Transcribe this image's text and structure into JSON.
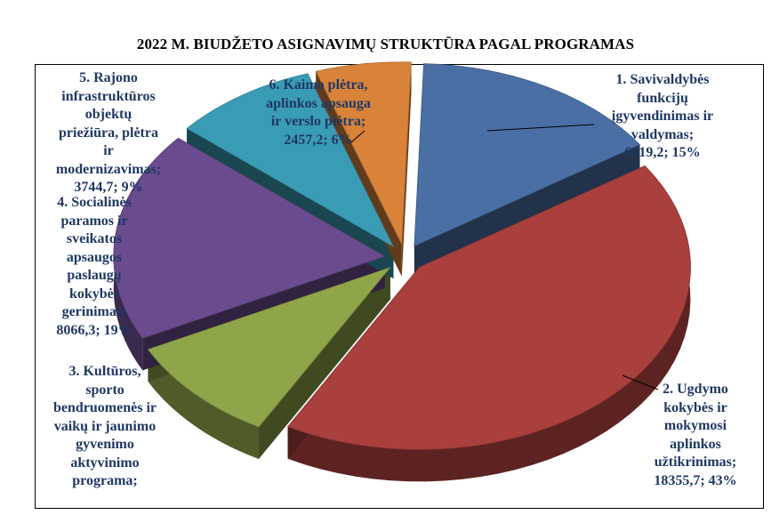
{
  "chart_data": {
    "type": "pie",
    "title": "2022 M. BIUDŽETO ASIGNAVIMŲ STRUKTŪRA PAGAL PROGRAMAS",
    "slices": [
      {
        "label": "1. Savivaldybės funkcijų įgyvendinimas ir valdymas; 6519,2; 15%",
        "value": 6519.2,
        "percent": 15,
        "color": "#4a6fa5"
      },
      {
        "label": "2. Ugdymo kokybės ir mokymosi aplinkos užtikrinimas; 18355,7; 43%",
        "value": 18355.7,
        "percent": 43,
        "color": "#a9403d"
      },
      {
        "label": "3. Kultūros, sporto bendruomenės ir vaikų ir jaunimo gyvenimo aktyvinimo programa;",
        "value": 4118.3,
        "percent": 10,
        "color": "#8fa54a"
      },
      {
        "label": "4. Socialinės paramos ir sveikatos apsaugos paslaugų kokybės gerinimas; 8066,3; 19%",
        "value": 8066.3,
        "percent": 19,
        "color": "#6a4c8e"
      },
      {
        "label": "5. Rajono infrastruktūros objektų priežiūra, plėtra ir modernizavimas; 3744,7; 9%",
        "value": 3744.7,
        "percent": 9,
        "color": "#3a9bb5"
      },
      {
        "label": "6. Kaimo plėtra, aplinkos apsauga ir verslo plėtra; 2457,2; 6%",
        "value": 2457.2,
        "percent": 6,
        "color": "#d8823a"
      }
    ],
    "labels_display": {
      "l1": "1. Savivaldybės\nfunkcijų\nįgyvendinimas ir\nvaldymas;\n6519,2; 15%",
      "l2": "2. Ugdymo\nkokybės ir\nmokymosi\naplinkos\nužtikrinimas;\n18355,7; 43%",
      "l3": "3. Kultūros,\nsporto\nbendruomenės ir\nvaikų ir jaunimo\ngyvenimo\naktyvinimo\nprograma;",
      "l4": "4. Socialinės\nparamos ir\nsveikatos\napsaugos\npaslaugų\nkokybės\ngerinimas;\n8066,3; 19%",
      "l5": "5. Rajono\ninfrastruktūros\nobjektų\npriežiūra, plėtra\nir\nmodernizavimas;\n3744,7; 9%",
      "l6": "6. Kaimo plėtra,\naplinkos apsauga\nir verslo plėtra;\n2457,2; 6%"
    }
  }
}
